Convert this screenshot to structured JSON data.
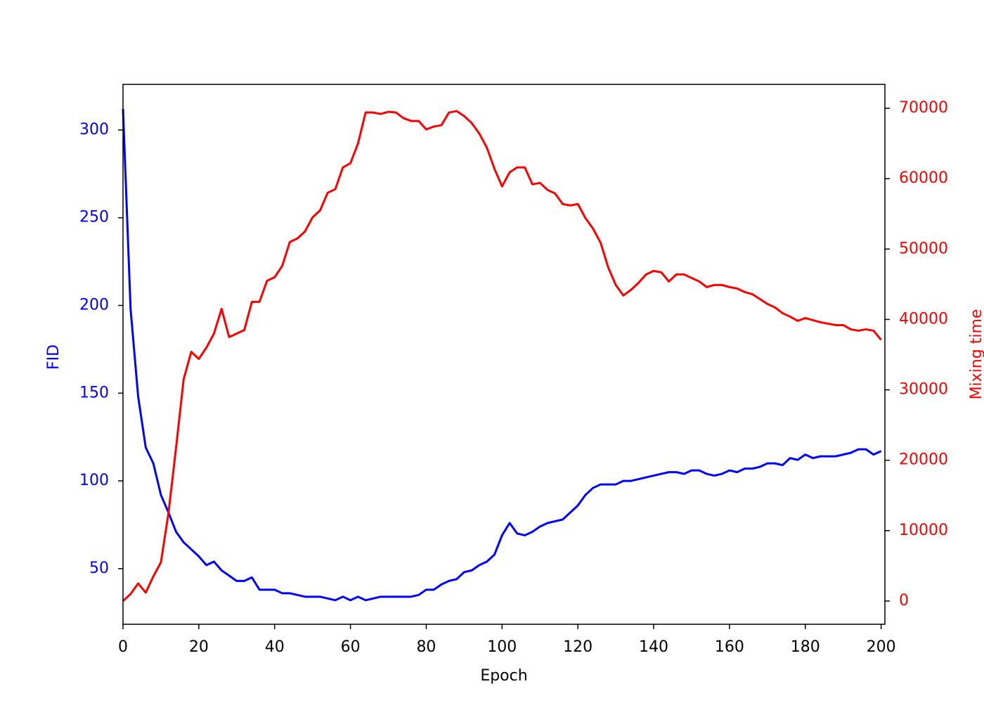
{
  "chart_data": {
    "type": "line",
    "x_label": "Epoch",
    "y_label": "FID",
    "y2_label": "Mixing time",
    "x": [
      0,
      2,
      4,
      6,
      8,
      10,
      12,
      14,
      16,
      18,
      20,
      22,
      24,
      26,
      28,
      30,
      32,
      34,
      36,
      38,
      40,
      42,
      44,
      46,
      48,
      50,
      52,
      54,
      56,
      58,
      60,
      62,
      64,
      66,
      68,
      70,
      72,
      74,
      76,
      78,
      80,
      82,
      84,
      86,
      88,
      90,
      92,
      94,
      96,
      98,
      100,
      102,
      104,
      106,
      108,
      110,
      112,
      114,
      116,
      118,
      120,
      122,
      124,
      126,
      128,
      130,
      132,
      134,
      136,
      138,
      140,
      142,
      144,
      146,
      148,
      150,
      152,
      154,
      156,
      158,
      160,
      162,
      164,
      166,
      168,
      170,
      172,
      174,
      176,
      178,
      180,
      182,
      184,
      186,
      188,
      190,
      192,
      194,
      196,
      198,
      200
    ],
    "series": [
      {
        "name": "FID",
        "color": "#0000ff",
        "axis": "y",
        "values": [
          312,
          198,
          148,
          119,
          110,
          92,
          82,
          71,
          65,
          61,
          57,
          52,
          54,
          49,
          46,
          43,
          43,
          45,
          38,
          38,
          38,
          36,
          36,
          35,
          34,
          34,
          34,
          33,
          32,
          34,
          32,
          34,
          32,
          33,
          34,
          34,
          34,
          34,
          34,
          35,
          38,
          38,
          41,
          43,
          44,
          48,
          49,
          52,
          54,
          58,
          69,
          76,
          70,
          69,
          71,
          74,
          76,
          77,
          78,
          82,
          86,
          92,
          96,
          98,
          98,
          98,
          100,
          100,
          101,
          102,
          103,
          104,
          105,
          105,
          104,
          106,
          106,
          104,
          103,
          104,
          106,
          105,
          107,
          107,
          108,
          110,
          110,
          109,
          113,
          112,
          115,
          113,
          114,
          114,
          114,
          115,
          116,
          118,
          118,
          115,
          117
        ]
      },
      {
        "name": "Mixing time",
        "color": "#ff0000",
        "axis": "y2",
        "values": [
          0,
          1000,
          2500,
          1200,
          3500,
          5500,
          12500,
          21800,
          31500,
          35400,
          34400,
          36000,
          38000,
          41500,
          37500,
          38000,
          38500,
          42500,
          42500,
          45500,
          46000,
          47600,
          51000,
          51500,
          52500,
          54500,
          55500,
          58000,
          58500,
          61600,
          62200,
          65000,
          69400,
          69400,
          69200,
          69500,
          69400,
          68600,
          68200,
          68200,
          67000,
          67400,
          67600,
          69400,
          69600,
          68900,
          67900,
          66400,
          64400,
          61400,
          58900,
          60900,
          61600,
          61600,
          59200,
          59400,
          58400,
          57900,
          56400,
          56200,
          56400,
          54400,
          52900,
          50900,
          47400,
          44900,
          43400,
          44200,
          45200,
          46400,
          46900,
          46700,
          45400,
          46400,
          46400,
          45900,
          45400,
          44600,
          44900,
          44900,
          44600,
          44400,
          43900,
          43600,
          42900,
          42200,
          41700,
          40900,
          40400,
          39800,
          40200,
          39900,
          39600,
          39400,
          39200,
          39200,
          38600,
          38400,
          38600,
          38400,
          37100
        ]
      }
    ],
    "xlim": [
      0,
      201
    ],
    "xticks": [
      0,
      20,
      40,
      60,
      80,
      100,
      120,
      140,
      160,
      180,
      200
    ],
    "ylim": [
      18.3,
      326
    ],
    "yticks": [
      50,
      100,
      150,
      200,
      250,
      300
    ],
    "y2lim": [
      -3300,
      73400
    ],
    "y2ticks": [
      0,
      10000,
      20000,
      30000,
      40000,
      50000,
      60000,
      70000
    ],
    "y_color": "#0000ff",
    "y2_color": "#ff0000"
  }
}
